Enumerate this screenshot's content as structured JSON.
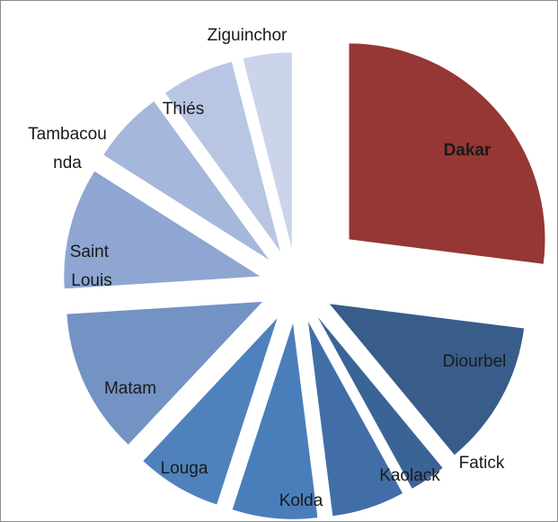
{
  "chart_data": {
    "type": "pie",
    "categories": [
      "Dakar",
      "Diourbel",
      "Fatick",
      "Kaolack",
      "Kolda",
      "Louga",
      "Matam",
      "Saint Louis",
      "Tambacounda",
      "Thiés",
      "Ziguinchor"
    ],
    "values": [
      27,
      12,
      3,
      6,
      7,
      7,
      12,
      10,
      6,
      6,
      4
    ],
    "colors": [
      "#953735",
      "#385d8a",
      "#3b6496",
      "#426ea8",
      "#4a7ebb",
      "#4f81bd",
      "#7393c5",
      "#8ea6d1",
      "#a6b7dc",
      "#b9c6e3",
      "#cbd4ea"
    ]
  }
}
